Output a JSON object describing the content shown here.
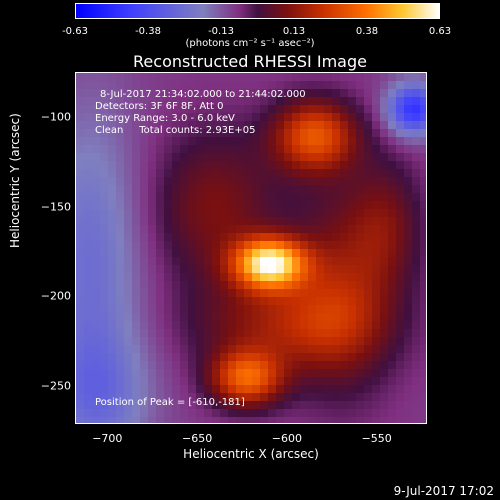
{
  "colorbar": {
    "ticks": [
      "-0.63",
      "-0.38",
      "-0.13",
      "0.13",
      "0.38",
      "0.63"
    ],
    "units": "(photons cm⁻² s⁻¹ asec⁻²)"
  },
  "title": "Reconstructed RHESSI Image",
  "info": {
    "time": "8-Jul-2017 21:34:02.000 to 21:44:02.000",
    "detectors": "Detectors: 3F 6F 8F, Att 0",
    "energy": "Energy Range: 3.0 - 6.0 keV",
    "clean": "Clean     Total counts: 2.93E+05",
    "peak": "Position of Peak = [-610,-181]"
  },
  "timestamp": "9-Jul-2017 17:02",
  "chart_data": {
    "type": "heatmap",
    "title": "Reconstructed RHESSI Image",
    "xlabel": "Heliocentric X (arcsec)",
    "ylabel": "Heliocentric Y (arcsec)",
    "xlim": [
      -718,
      -522
    ],
    "ylim": [
      -271,
      -75
    ],
    "xticks": [
      -700,
      -650,
      -600,
      -550
    ],
    "yticks": [
      -100,
      -150,
      -200,
      -250
    ],
    "color_range": [
      -0.63,
      0.63
    ],
    "peak": [
      -610,
      -181
    ],
    "sources": [
      {
        "x": -610,
        "y": -181,
        "amp": 0.63,
        "sx": 14,
        "sy": 10
      },
      {
        "x": -623,
        "y": -245,
        "amp": 0.4,
        "sx": 14,
        "sy": 11
      },
      {
        "x": -585,
        "y": -110,
        "amp": 0.38,
        "sx": 16,
        "sy": 14
      },
      {
        "x": -600,
        "y": -215,
        "amp": 0.22,
        "sx": 35,
        "sy": 18
      },
      {
        "x": -570,
        "y": -195,
        "amp": 0.2,
        "sx": 20,
        "sy": 40
      },
      {
        "x": -640,
        "y": -150,
        "amp": 0.18,
        "sx": 25,
        "sy": 30
      },
      {
        "x": -545,
        "y": -160,
        "amp": 0.15,
        "sx": 14,
        "sy": 25
      }
    ],
    "negative_regions": [
      {
        "x": -710,
        "y": -180,
        "amp": -0.18,
        "sx": 20,
        "sy": 60
      },
      {
        "x": -530,
        "y": -95,
        "amp": -0.4,
        "sx": 10,
        "sy": 10
      },
      {
        "x": -705,
        "y": -255,
        "amp": -0.15,
        "sx": 20,
        "sy": 25
      }
    ]
  }
}
